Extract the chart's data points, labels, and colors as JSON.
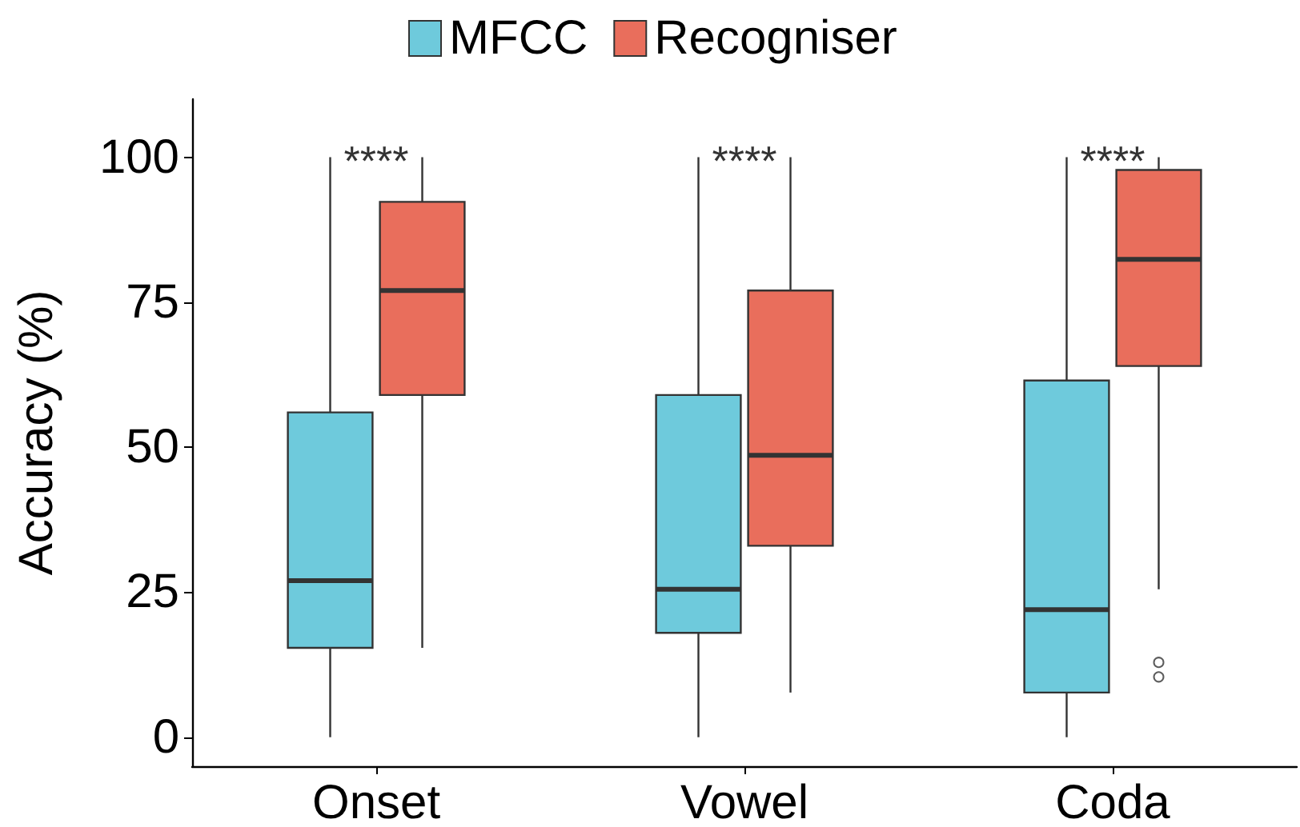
{
  "chart_data": {
    "type": "box",
    "ylabel": "Accuracy (%)",
    "categories": [
      "Onset",
      "Vowel",
      "Coda"
    ],
    "series": [
      {
        "name": "MFCC",
        "color": "#6ecadc",
        "boxes": [
          {
            "low": 0,
            "q1": 15.4,
            "median": 27,
            "q3": 56,
            "high": 100
          },
          {
            "low": 0,
            "q1": 18,
            "median": 25.5,
            "q3": 59,
            "high": 100
          },
          {
            "low": 0,
            "q1": 7.7,
            "median": 22,
            "q3": 61.5,
            "high": 100
          }
        ]
      },
      {
        "name": "Recogniser",
        "color": "#e96e5c",
        "boxes": [
          {
            "low": 15.4,
            "q1": 59,
            "median": 77,
            "q3": 92.3,
            "high": 100
          },
          {
            "low": 7.7,
            "q1": 33,
            "median": 48.6,
            "q3": 77,
            "high": 100
          },
          {
            "low": 25.5,
            "q1": 64,
            "median": 82.4,
            "q3": 97.8,
            "high": 100,
            "outliers": [
              12.9,
              10.4
            ]
          }
        ]
      }
    ],
    "annotations": [
      "****",
      "****",
      "****"
    ],
    "ylim": [
      -5,
      110
    ],
    "yticks": [
      0,
      25,
      50,
      75,
      100
    ],
    "grid": false,
    "legend": "top"
  }
}
